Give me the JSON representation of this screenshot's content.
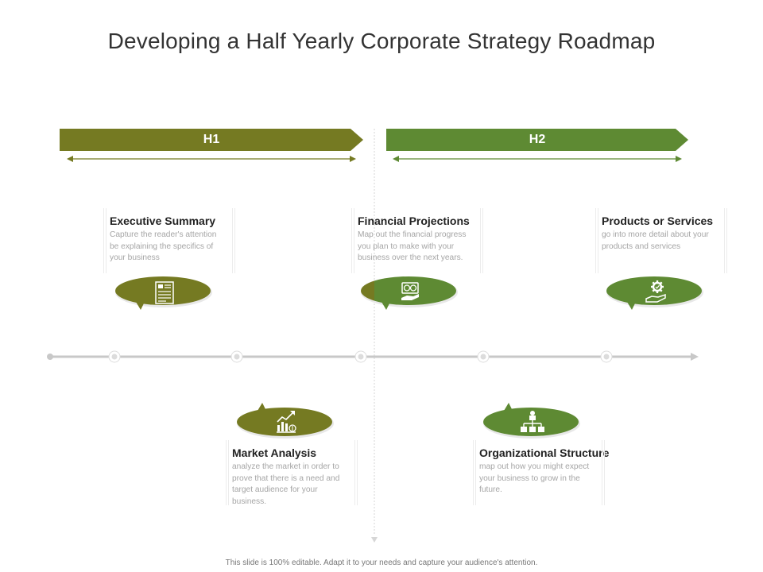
{
  "title": "Developing a Half Yearly Corporate Strategy Roadmap",
  "phases": [
    {
      "label": "H1",
      "color": "#757a22"
    },
    {
      "label": "H2",
      "color": "#5e8a33"
    }
  ],
  "colors": {
    "olive": "#757a22",
    "green": "#5e8a33",
    "timeline": "#c8c8c8",
    "card_title": "#222222",
    "card_desc": "#a5a5a5"
  },
  "cards": [
    {
      "title": "Executive Summary",
      "desc": "Capture the reader's attention be explaining the specifics of your business",
      "icon": "document-list-icon"
    },
    {
      "title": "Market Analysis",
      "desc": "analyze the market in order to prove that there is a need and target audience for your business.",
      "icon": "growth-chart-icon"
    },
    {
      "title": "Financial Projections",
      "desc": "Map out the financial progress you plan to make with your business over the next years.",
      "icon": "money-hand-icon"
    },
    {
      "title": "Organizational Structure",
      "desc": "map out how you might expect your business to grow in the future.",
      "icon": "org-chart-icon"
    },
    {
      "title": "Products or Services",
      "desc": "go into more detail about your products and services",
      "icon": "gear-hand-icon"
    }
  ],
  "footer": "This slide is 100% editable. Adapt it to your needs and capture your audience's attention."
}
